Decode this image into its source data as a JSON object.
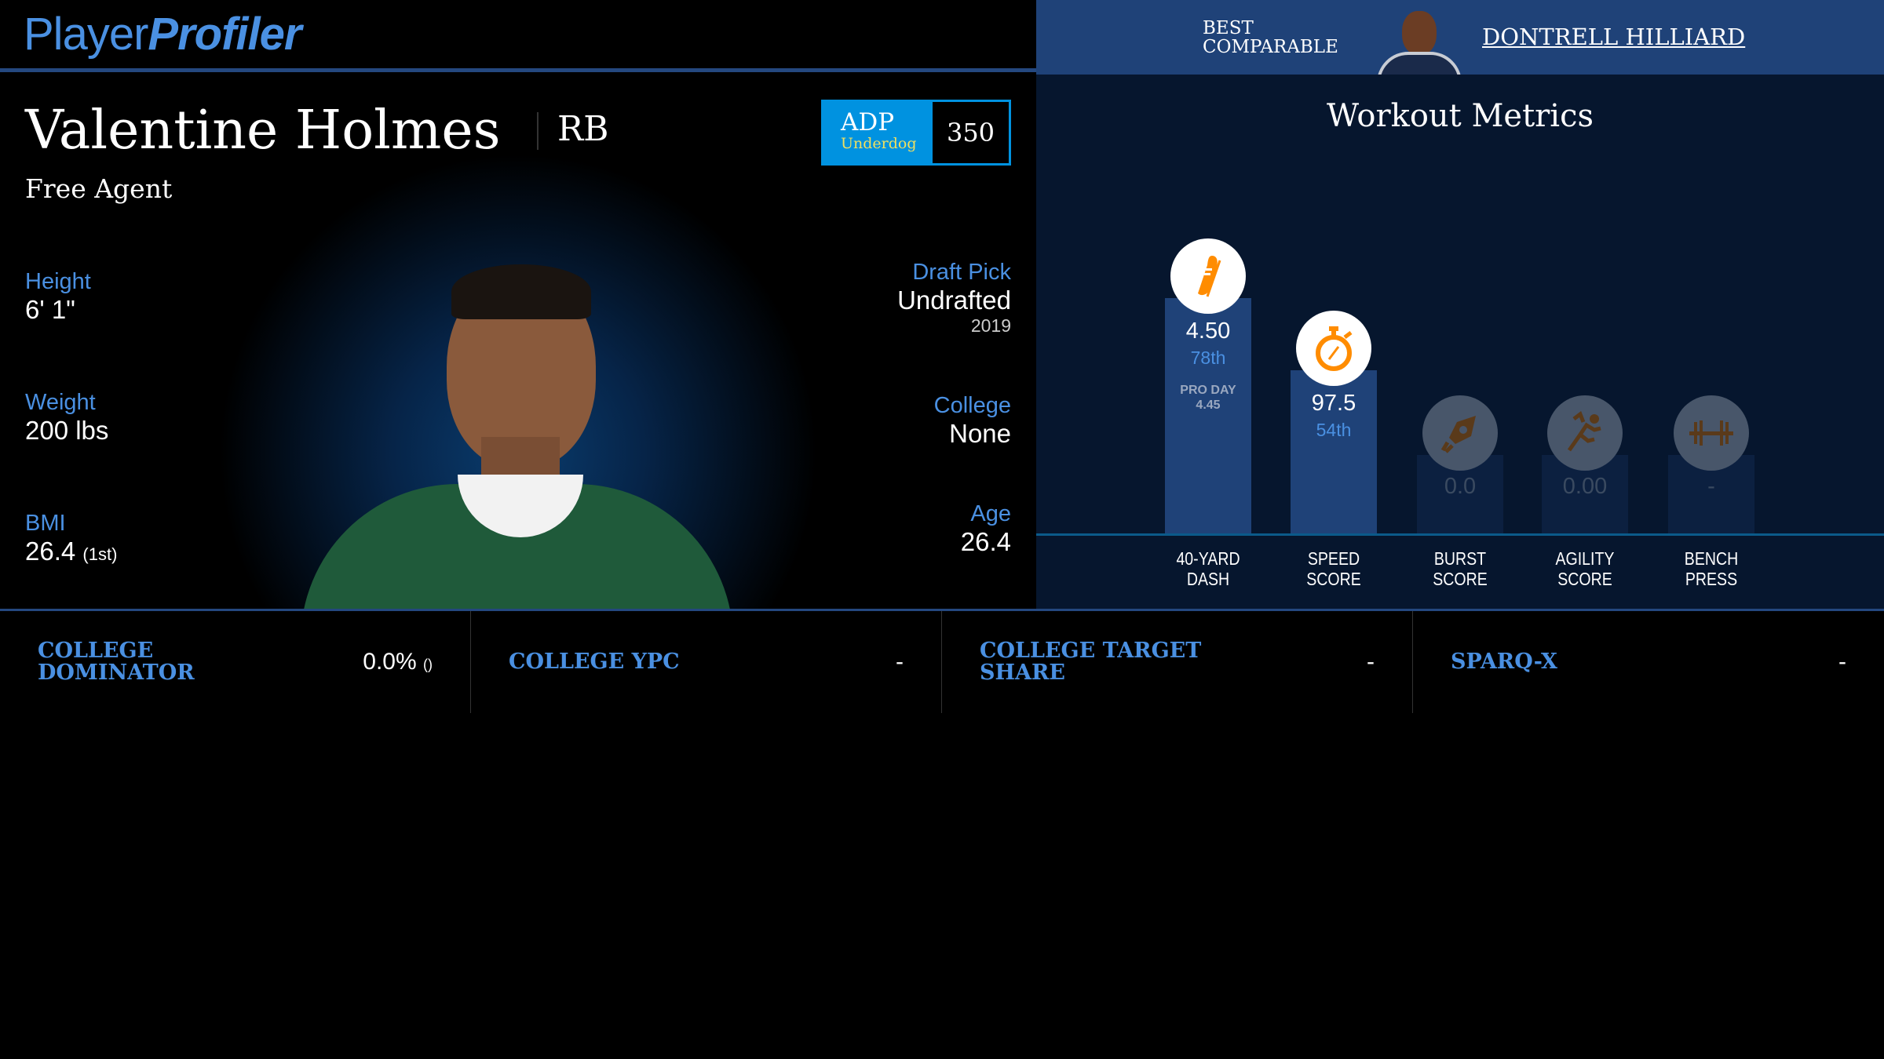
{
  "logo": {
    "part1": "Player",
    "part2": "Profiler"
  },
  "comparable": {
    "label_line1": "BEST",
    "label_line2": "COMPARABLE",
    "name": "DONTRELL HILLIARD"
  },
  "player": {
    "name": "Valentine Holmes",
    "position": "RB",
    "team": "Free Agent"
  },
  "adp": {
    "label": "ADP",
    "source": "Underdog",
    "value": "350"
  },
  "stats_left": [
    {
      "label": "Height",
      "value": "6' 1\""
    },
    {
      "label": "Weight",
      "value": "200 lbs"
    },
    {
      "label": "BMI",
      "value": "26.4",
      "rank": "(1st)"
    }
  ],
  "stats_right": [
    {
      "label": "Draft Pick",
      "value": "Undrafted",
      "sub": "2019"
    },
    {
      "label": "College",
      "value": "None"
    },
    {
      "label": "Age",
      "value": "26.4"
    }
  ],
  "workout": {
    "title": "Workout Metrics",
    "metrics": [
      {
        "label1": "40-YARD",
        "label2": "DASH",
        "value": "4.50",
        "pct": "78th",
        "extra1": "PRO DAY",
        "extra2": "4.45",
        "icon": "running-shoe-icon",
        "percentile": 78
      },
      {
        "label1": "SPEED",
        "label2": "SCORE",
        "value": "97.5",
        "pct": "54th",
        "icon": "stopwatch-icon",
        "percentile": 54
      },
      {
        "label1": "BURST",
        "label2": "SCORE",
        "value": "0.0",
        "icon": "rocket-icon"
      },
      {
        "label1": "AGILITY",
        "label2": "SCORE",
        "value": "0.00",
        "icon": "runner-icon"
      },
      {
        "label1": "BENCH",
        "label2": "PRESS",
        "value": "-",
        "icon": "dumbbell-icon"
      }
    ],
    "colors": {
      "active_bar": "#1f4278",
      "inactive_bar": "#0c2040",
      "icon_active": "#ff8c00",
      "icon_inactive": "#5a3a1a"
    }
  },
  "bottom": [
    {
      "label": "COLLEGE DOMINATOR",
      "value": "0.0%",
      "rank": "()"
    },
    {
      "label": "COLLEGE YPC",
      "value": "-"
    },
    {
      "label": "COLLEGE TARGET SHARE",
      "value": "-"
    },
    {
      "label": "SPARQ-X",
      "value": "-"
    }
  ]
}
